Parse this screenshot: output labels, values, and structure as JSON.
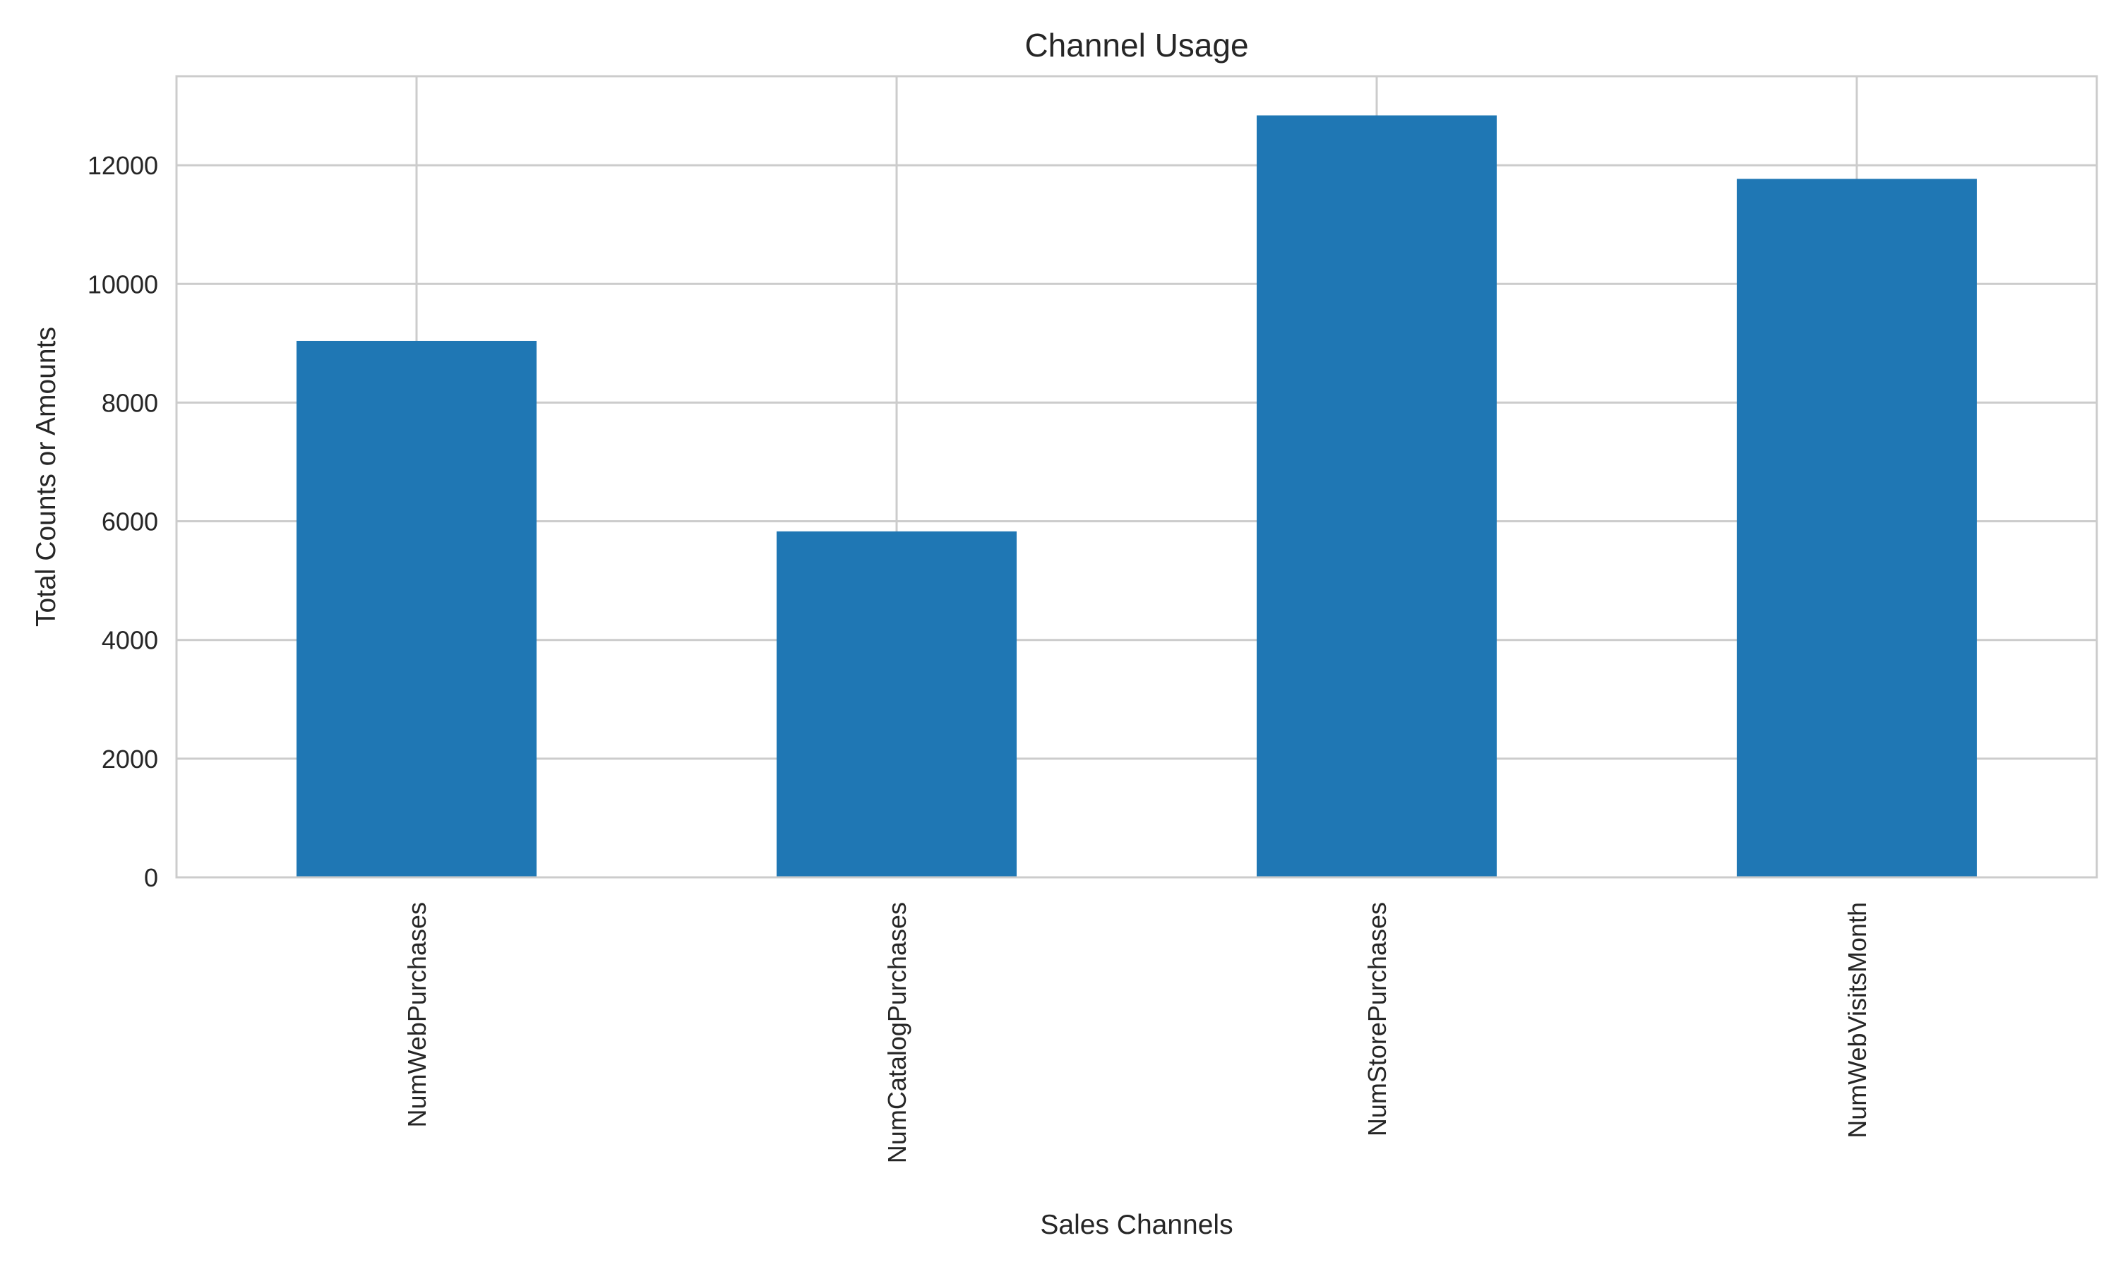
{
  "chart_data": {
    "type": "bar",
    "title": "Channel Usage",
    "xlabel": "Sales Channels",
    "ylabel": "Total Counts or Amounts",
    "categories": [
      "NumWebPurchases",
      "NumCatalogPurchases",
      "NumStorePurchases",
      "NumWebVisitsMonth"
    ],
    "values": [
      9040,
      5830,
      12840,
      11770
    ],
    "ylim": [
      0,
      13500
    ],
    "yticks": [
      0,
      2000,
      4000,
      6000,
      8000,
      10000,
      12000
    ],
    "ytick_labels": [
      "0",
      "2000",
      "4000",
      "6000",
      "8000",
      "10000",
      "12000"
    ],
    "grid": true,
    "bar_color": "#1f77b4",
    "grid_color": "#cccccc",
    "spine_color": "#cccccc"
  }
}
